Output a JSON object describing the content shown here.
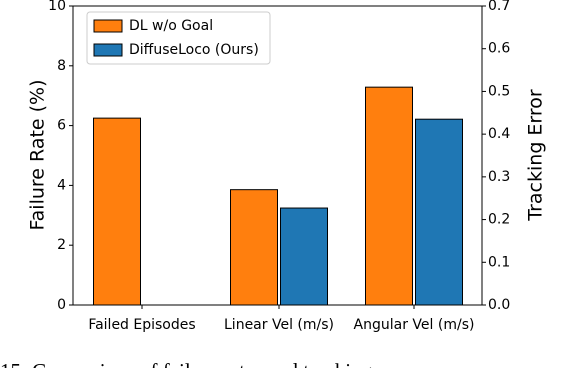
{
  "chart_data": {
    "type": "bar",
    "ylabel": "Failure Rate (%)",
    "y2label": "Tracking Error",
    "categories": [
      "Failed Episodes",
      "Linear Vel (m/s)",
      "Angular Vel (m/s)"
    ],
    "category_axis": [
      "y",
      "y2",
      "y2"
    ],
    "series": [
      {
        "name": "DL w/o Goal",
        "color": "#ff7f0e",
        "values": [
          6.25,
          0.27,
          0.51
        ]
      },
      {
        "name": "DiffuseLoco (Ours)",
        "color": "#1f77b4",
        "values": [
          null,
          0.227,
          0.435
        ]
      }
    ],
    "ylim": [
      0,
      10
    ],
    "yticks": [
      0,
      2,
      4,
      6,
      8,
      10
    ],
    "y2lim": [
      0,
      0.7
    ],
    "y2ticks": [
      {
        "value": 0,
        "label": "0.0"
      },
      0.1,
      0.2,
      0.3,
      0.4,
      0.5,
      0.6,
      0.7
    ],
    "legend": "upper left",
    "caption": "15: Comparison of failure rates and tracking e"
  }
}
